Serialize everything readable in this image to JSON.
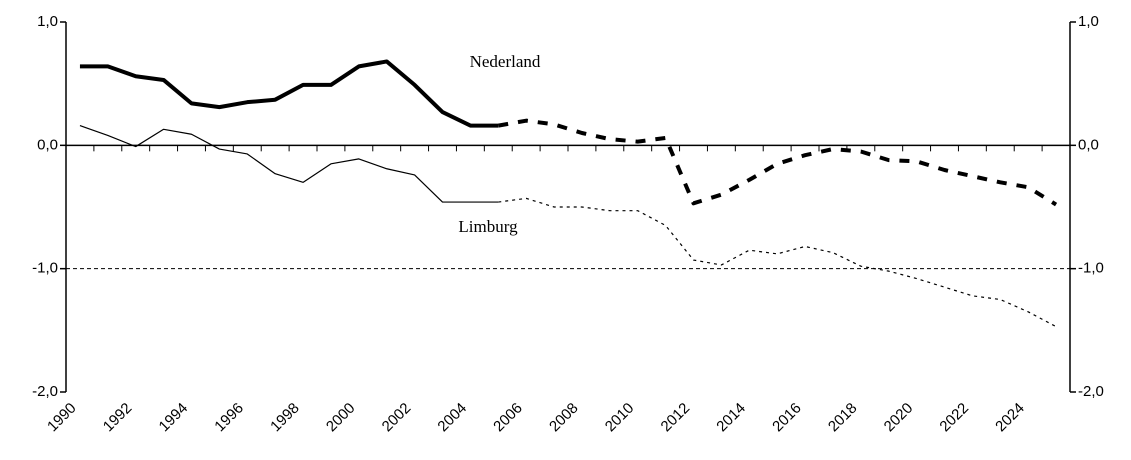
{
  "chart_data": {
    "type": "line",
    "categories": [
      "1990",
      null,
      "1992",
      null,
      "1994",
      null,
      "1996",
      null,
      "1998",
      null,
      "2000",
      null,
      "2002",
      null,
      "2004",
      null,
      "2006",
      null,
      "2008",
      null,
      "2010",
      null,
      "2012",
      null,
      "2014",
      null,
      "2016",
      null,
      "2018",
      null,
      "2020",
      null,
      "2022",
      null,
      "2024",
      null
    ],
    "series": [
      {
        "name": "Nederland",
        "color": "#000000",
        "width": 4,
        "values": [
          0.64,
          0.64,
          0.56,
          0.53,
          0.34,
          0.31,
          0.35,
          0.37,
          0.49,
          0.49,
          0.64,
          0.68,
          0.49,
          0.27,
          0.16,
          0.16,
          null,
          null,
          null,
          null,
          null,
          null,
          null,
          null,
          null,
          null,
          null,
          null,
          null,
          null,
          null,
          null,
          null,
          null,
          null,
          null
        ],
        "projected_values": [
          null,
          null,
          null,
          null,
          null,
          null,
          null,
          null,
          null,
          null,
          null,
          null,
          null,
          null,
          null,
          0.16,
          0.2,
          0.17,
          0.1,
          0.05,
          0.03,
          0.06,
          -0.47,
          -0.4,
          -0.28,
          -0.15,
          -0.08,
          -0.03,
          -0.05,
          -0.12,
          -0.13,
          -0.2,
          -0.25,
          -0.3,
          -0.34,
          -0.48
        ]
      },
      {
        "name": "Limburg",
        "color": "#000000",
        "width": 1.2,
        "values": [
          0.16,
          0.08,
          -0.01,
          0.13,
          0.09,
          -0.03,
          -0.07,
          -0.23,
          -0.3,
          -0.15,
          -0.11,
          -0.19,
          -0.24,
          -0.46,
          -0.46,
          -0.46,
          null,
          null,
          null,
          null,
          null,
          null,
          null,
          null,
          null,
          null,
          null,
          null,
          null,
          null,
          null,
          null,
          null,
          null,
          null,
          null
        ],
        "projected_values": [
          null,
          null,
          null,
          null,
          null,
          null,
          null,
          null,
          null,
          null,
          null,
          null,
          null,
          null,
          null,
          -0.46,
          -0.43,
          -0.5,
          -0.5,
          -0.53,
          -0.53,
          -0.65,
          -0.93,
          -0.97,
          -0.85,
          -0.88,
          -0.82,
          -0.87,
          -0.98,
          -1.02,
          -1.08,
          -1.15,
          -1.22,
          -1.25,
          -1.35,
          -1.47
        ]
      }
    ],
    "ylim": [
      -2,
      1
    ],
    "yticks": [
      {
        "value": -2,
        "label": "-2,0"
      },
      {
        "value": -1,
        "label": "-1,0"
      },
      {
        "value": 0,
        "label": "0,0"
      },
      {
        "value": 1,
        "label": "1,0"
      }
    ],
    "y2lim": [
      -2,
      1
    ],
    "y2ticks": [
      {
        "value": -2,
        "label": "-2,0"
      },
      {
        "value": -1,
        "label": "-1,0"
      },
      {
        "value": 0,
        "label": "0,0"
      },
      {
        "value": 1,
        "label": "1,0"
      }
    ],
    "grid_dashed_at": [
      -1
    ]
  }
}
